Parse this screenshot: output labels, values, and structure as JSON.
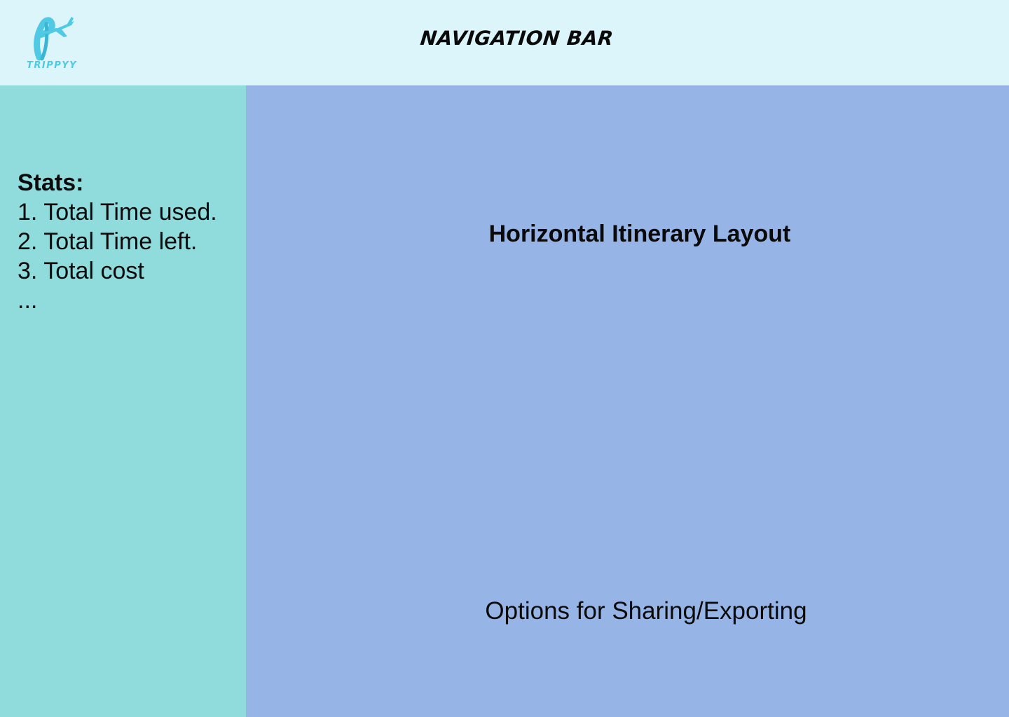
{
  "colors": {
    "navbar_bg": "#dcf5fb",
    "sidebar_bg": "#90dbdc",
    "main_bg": "#96b5e6",
    "logo_accent": "#4fc9e4",
    "text": "#0a0a0a"
  },
  "navbar": {
    "logo": {
      "icon": "airplane-logo-icon",
      "wordmark": "TRIPPYY"
    },
    "title": "NAVIGATION BAR"
  },
  "sidebar": {
    "stats_heading": "Stats:",
    "stats_items": [
      "1. Total Time used.",
      "2. Total Time left.",
      "3. Total cost",
      "..."
    ]
  },
  "main": {
    "title": "Horizontal Itinerary Layout",
    "share_options": "Options for Sharing/Exporting"
  }
}
